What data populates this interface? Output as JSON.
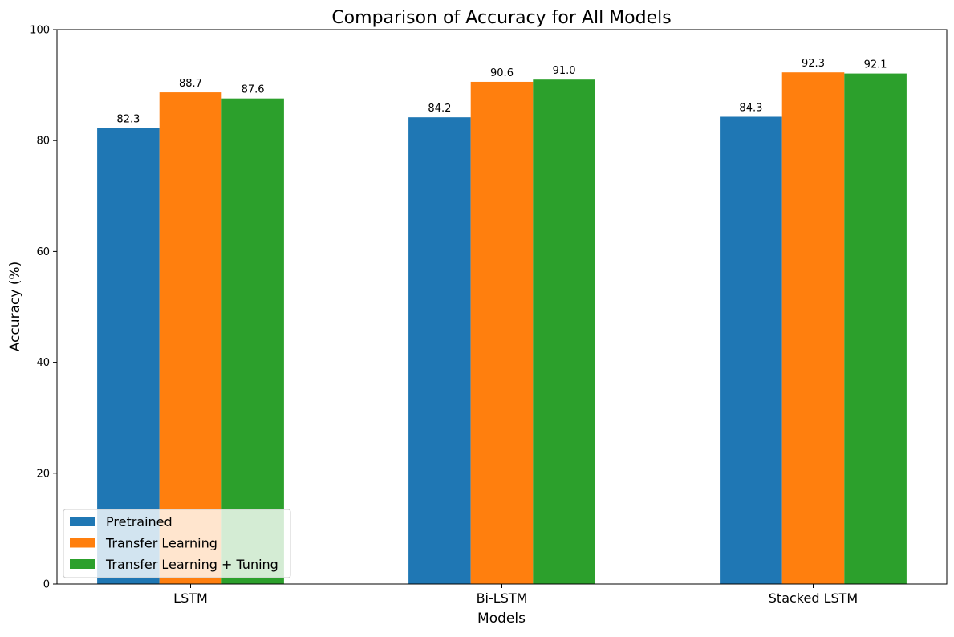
{
  "chart_data": {
    "type": "bar",
    "title": "Comparison of Accuracy for All Models",
    "xlabel": "Models",
    "ylabel": "Accuracy (%)",
    "categories": [
      "LSTM",
      "Bi-LSTM",
      "Stacked LSTM"
    ],
    "series": [
      {
        "name": "Pretrained",
        "values": [
          82.3,
          84.2,
          84.3
        ],
        "labels": [
          "82.3",
          "84.2",
          "84.3"
        ],
        "color": "#1f77b4"
      },
      {
        "name": "Transfer Learning",
        "values": [
          88.7,
          90.6,
          92.3
        ],
        "labels": [
          "88.7",
          "90.6",
          "92.3"
        ],
        "color": "#ff7f0e"
      },
      {
        "name": "Transfer Learning + Tuning",
        "values": [
          87.6,
          91.0,
          92.1
        ],
        "labels": [
          "87.6",
          "91.0",
          "92.1"
        ],
        "color": "#2ca02c"
      }
    ],
    "ylim": [
      0,
      100
    ],
    "yticks": [
      0,
      20,
      40,
      60,
      80,
      100
    ],
    "ytick_labels": [
      "0",
      "20",
      "40",
      "60",
      "80",
      "100"
    ],
    "grid": false,
    "legend_position": "lower-left"
  }
}
